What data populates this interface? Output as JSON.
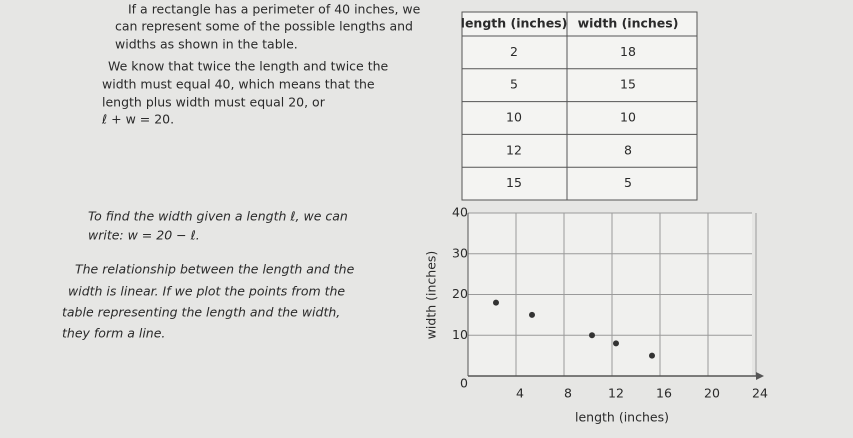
{
  "paragraphs": [
    {
      "lines": [
        "If a rectangle has a perimeter of 40 inches, we",
        "can represent some of the possible lengths and",
        "widths as shown in the table."
      ]
    },
    {
      "lines": [
        "We know that twice the length and twice the",
        "width must equal 40, which means that the",
        "length plus width must equal 20, or",
        "ℓ + w = 20."
      ]
    },
    {
      "lines": [
        "To find the width given a length ℓ, we can",
        "write: w = 20 − ℓ."
      ]
    },
    {
      "lines": [
        "The relationship between the length and the",
        "width is linear. If we plot the points from the",
        "table representing the length and the width,",
        "they form a line."
      ]
    }
  ],
  "table": {
    "header": [
      "length (inches)",
      "width (inches)"
    ],
    "rows": [
      [
        2,
        18
      ],
      [
        5,
        15
      ],
      [
        10,
        10
      ],
      [
        12,
        8
      ],
      [
        15,
        5
      ]
    ]
  },
  "chart_data": {
    "type": "scatter",
    "x_label": "length (inches)",
    "y_label": "width (inches)",
    "x": [
      2,
      5,
      10,
      12,
      15
    ],
    "values": [
      18,
      15,
      10,
      8,
      5
    ],
    "color": "#333333",
    "xlim": [
      0,
      24
    ],
    "ylim": [
      0,
      40
    ],
    "xticks": [
      0,
      4,
      8,
      12,
      16,
      20,
      24
    ],
    "yticks": [
      10,
      20,
      30,
      40
    ],
    "grid": true
  }
}
